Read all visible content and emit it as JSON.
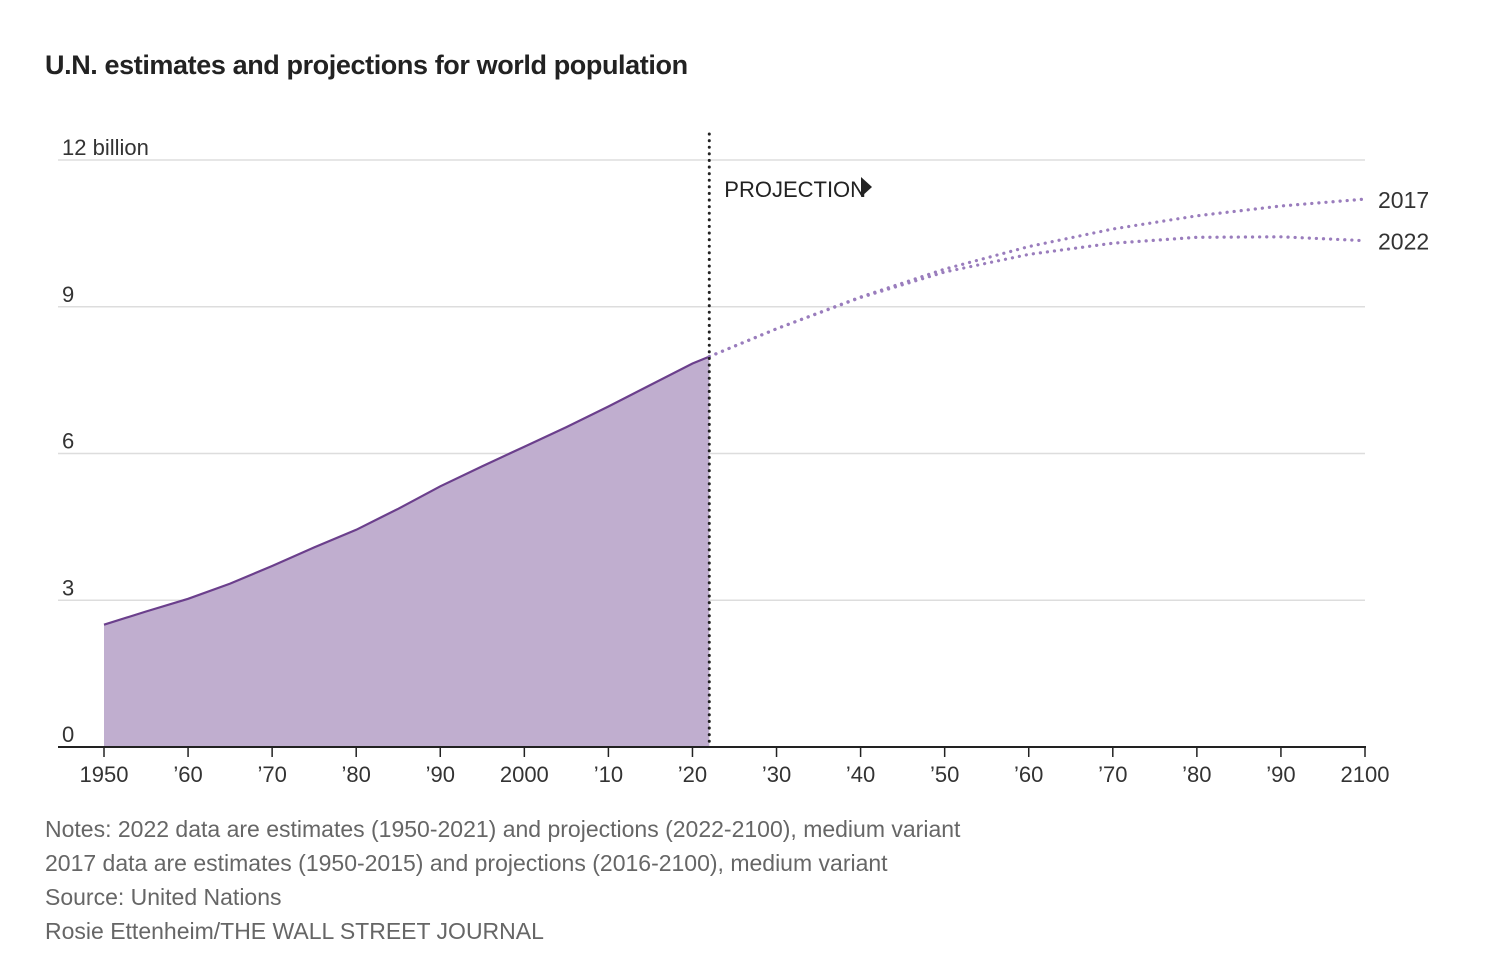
{
  "chart_data": {
    "type": "area",
    "title": "U.N. estimates and projections for world population",
    "ylabel": "12 billion",
    "ylim": [
      0,
      12
    ],
    "yticks": [
      {
        "value": 0,
        "label": "0"
      },
      {
        "value": 3,
        "label": "3"
      },
      {
        "value": 6,
        "label": "6"
      },
      {
        "value": 9,
        "label": "9"
      },
      {
        "value": 12,
        "label": "12 billion"
      }
    ],
    "xlim": [
      1950,
      2100
    ],
    "xticks": [
      {
        "value": 1950,
        "label": "1950"
      },
      {
        "value": 1960,
        "label": "’60"
      },
      {
        "value": 1970,
        "label": "’70"
      },
      {
        "value": 1980,
        "label": "’80"
      },
      {
        "value": 1990,
        "label": "’90"
      },
      {
        "value": 2000,
        "label": "2000"
      },
      {
        "value": 2010,
        "label": "’10"
      },
      {
        "value": 2020,
        "label": "’20"
      },
      {
        "value": 2030,
        "label": "’30"
      },
      {
        "value": 2040,
        "label": "’40"
      },
      {
        "value": 2050,
        "label": "’50"
      },
      {
        "value": 2060,
        "label": "’60"
      },
      {
        "value": 2070,
        "label": "’70"
      },
      {
        "value": 2080,
        "label": "’80"
      },
      {
        "value": 2090,
        "label": "’90"
      },
      {
        "value": 2100,
        "label": "2100"
      }
    ],
    "projection_start": 2022,
    "projection_label": "PROJECTION",
    "estimates": {
      "x": [
        1950,
        1955,
        1960,
        1965,
        1970,
        1975,
        1980,
        1985,
        1990,
        1995,
        2000,
        2005,
        2010,
        2015,
        2020,
        2022
      ],
      "y": [
        2.5,
        2.77,
        3.03,
        3.34,
        3.7,
        4.08,
        4.44,
        4.87,
        5.33,
        5.74,
        6.14,
        6.54,
        6.96,
        7.4,
        7.84,
        7.98
      ]
    },
    "series": [
      {
        "name": "2017",
        "x": [
          2022,
          2030,
          2040,
          2050,
          2060,
          2070,
          2080,
          2090,
          2100
        ],
        "y": [
          7.98,
          8.55,
          9.2,
          9.77,
          10.23,
          10.59,
          10.86,
          11.06,
          11.2
        ]
      },
      {
        "name": "2022",
        "x": [
          2022,
          2030,
          2040,
          2050,
          2060,
          2070,
          2080,
          2090,
          2100
        ],
        "y": [
          7.98,
          8.55,
          9.19,
          9.71,
          10.07,
          10.3,
          10.42,
          10.43,
          10.35
        ]
      }
    ],
    "colors": {
      "fill": "#c0aecf",
      "line": "#6b3f8c",
      "projection": "#9a7dbd",
      "grid": "#dddddd",
      "axis": "#222222",
      "divider": "#222222"
    }
  },
  "notes": [
    "Notes: 2022 data are estimates (1950-2021) and projections (2022-2100), medium variant",
    "2017 data are estimates (1950-2015) and projections (2016-2100), medium variant",
    "Source: United Nations",
    "Rosie Ettenheim/THE WALL STREET JOURNAL"
  ]
}
